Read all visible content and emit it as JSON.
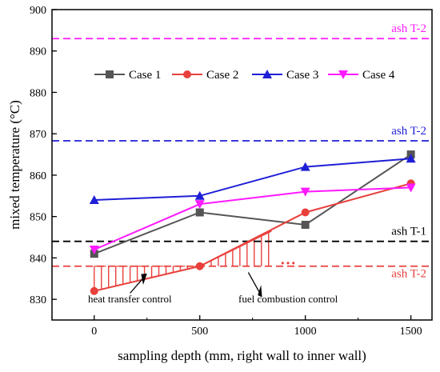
{
  "chart_data": {
    "type": "line",
    "xlabel": "sampling depth (mm, right wall to inner wall)",
    "ylabel": "mixed temperature (°C)",
    "xlim": [
      -200,
      1600
    ],
    "ylim": [
      825,
      900
    ],
    "x_ticks": [
      0,
      500,
      1000,
      1500
    ],
    "y_ticks": [
      830,
      840,
      850,
      860,
      870,
      880,
      890,
      900
    ],
    "x": [
      0,
      500,
      1000,
      1500
    ],
    "series": [
      {
        "name": "Case 1",
        "values": [
          841,
          851,
          848,
          865
        ],
        "color": "#555555",
        "marker": "square"
      },
      {
        "name": "Case 2",
        "values": [
          832,
          838,
          851,
          858
        ],
        "color": "#e8403c",
        "marker": "circle"
      },
      {
        "name": "Case 3",
        "values": [
          854,
          855,
          862,
          864
        ],
        "color": "#1f1fd6",
        "marker": "triangle-up"
      },
      {
        "name": "Case 4",
        "values": [
          842,
          853,
          856,
          857
        ],
        "color": "#ff1aff",
        "marker": "triangle-down"
      }
    ],
    "reference_lines": [
      {
        "label": "ash T-2",
        "y": 893,
        "color": "#ff1aff"
      },
      {
        "label": "ash T-2",
        "y": 868.3,
        "color": "#1f1fd6"
      },
      {
        "label": "ash T-1",
        "y": 844,
        "color": "#000000"
      },
      {
        "label": "ash T-2",
        "y": 838,
        "color": "#e8403c"
      }
    ],
    "annotations": {
      "heat_transfer_label": "heat transfer control",
      "fuel_combustion_label": "fuel combustion control",
      "ellipsis": "…"
    },
    "legend_position": "top",
    "grid": false
  }
}
